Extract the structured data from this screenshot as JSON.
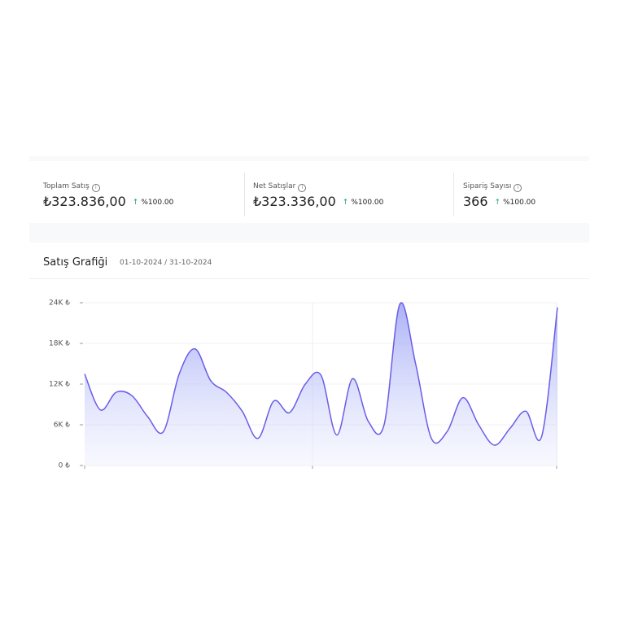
{
  "kpis": [
    {
      "label": "Toplam Satış",
      "value": "₺323.836,00",
      "change": "%100.00"
    },
    {
      "label": "Net Satışlar",
      "value": "₺323.336,00",
      "change": "%100.00"
    },
    {
      "label": "Sipariş Sayısı",
      "value": "366",
      "change": "%100.00"
    }
  ],
  "chart_data": {
    "type": "area",
    "title": "Satış Grafiği",
    "subtitle": "01-10-2024 / 31-10-2024",
    "series": [
      {
        "color": "#6b5ce7",
        "values": [
          13500,
          8200,
          10800,
          10300,
          7200,
          5000,
          13500,
          17200,
          12500,
          10800,
          8000,
          4000,
          9500,
          7800,
          12000,
          13300,
          4500,
          12800,
          6500,
          6000,
          23800,
          15000,
          4000,
          5000,
          10000,
          6000,
          3000,
          5500,
          8000,
          4300,
          23300
        ]
      }
    ],
    "ylim": [
      0,
      24000
    ],
    "yticks": [
      {
        "value": 0,
        "label": "0 ₺"
      },
      {
        "value": 6000,
        "label": "6K ₺"
      },
      {
        "value": 12000,
        "label": "12K ₺"
      },
      {
        "value": 18000,
        "label": "18K ₺"
      },
      {
        "value": 24000,
        "label": "24K ₺"
      }
    ],
    "grid": true
  }
}
